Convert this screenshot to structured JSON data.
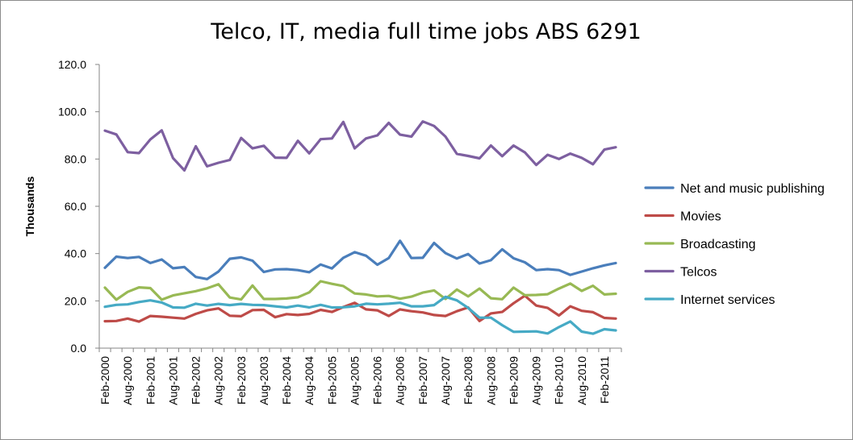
{
  "chart_data": {
    "type": "line",
    "title": "Telco, IT, media full time jobs ABS 6291",
    "ylabel": "Thousands",
    "xlabel": "",
    "ylim": [
      0,
      120
    ],
    "yticks": [
      "0.0",
      "20.0",
      "40.0",
      "60.0",
      "80.0",
      "100.0",
      "120.0"
    ],
    "grid": false,
    "legend_position": "right",
    "x_tick_labels": [
      "Feb-2000",
      "Aug-2000",
      "Feb-2001",
      "Aug-2001",
      "Feb-2002",
      "Aug-2002",
      "Feb-2003",
      "Aug-2003",
      "Feb-2004",
      "Aug-2004",
      "Feb-2005",
      "Aug-2005",
      "Feb-2006",
      "Aug-2006",
      "Feb-2007",
      "Aug-2007",
      "Feb-2008",
      "Aug-2008",
      "Feb-2009",
      "Aug-2009",
      "Feb-2010",
      "Aug-2010",
      "Feb-2011"
    ],
    "series": [
      {
        "name": "Net and music publishing",
        "color": "#4a7ebb",
        "values": [
          34,
          38.7,
          38.1,
          38.6,
          36,
          37.5,
          33.8,
          34.3,
          30.1,
          29.2,
          32.4,
          37.8,
          38.4,
          37,
          32.2,
          33.3,
          33.4,
          33,
          32.1,
          35.4,
          33.7,
          38.2,
          40.6,
          39.1,
          35.3,
          38.1,
          45.4,
          38.1,
          38.2,
          44.5,
          40.2,
          37.9,
          39.8,
          35.8,
          37.2,
          41.8,
          38,
          36.3,
          33,
          33.4,
          33,
          31,
          32.4,
          33.8,
          35,
          36
        ]
      },
      {
        "name": "Movies",
        "color": "#be4b48",
        "values": [
          11.4,
          11.5,
          12.5,
          11.2,
          13.6,
          13.3,
          12.9,
          12.5,
          14.5,
          16,
          16.8,
          13.7,
          13.5,
          16.1,
          16.2,
          13.1,
          14.4,
          14,
          14.5,
          16.2,
          15.3,
          17.4,
          19.2,
          16.4,
          16,
          13.6,
          16.4,
          15.6,
          15.1,
          14,
          13.6,
          15.6,
          17.2,
          11.5,
          14.7,
          15.3,
          19,
          22.2,
          18,
          17,
          13.8,
          17.7,
          15.8,
          15.2,
          12.8,
          12.5
        ]
      },
      {
        "name": "Broadcasting",
        "color": "#98b954",
        "values": [
          25.6,
          20.5,
          23.8,
          25.7,
          25.4,
          20.5,
          22.3,
          23.2,
          24.1,
          25.3,
          27,
          21.4,
          20.6,
          26.5,
          20.8,
          20.8,
          21,
          21.5,
          23.6,
          28.3,
          27.2,
          26.3,
          23.1,
          22.7,
          21.9,
          22.1,
          20.9,
          21.8,
          23.5,
          24.4,
          20.8,
          24.8,
          21.9,
          25.2,
          21.1,
          20.7,
          25.6,
          22.4,
          22.5,
          22.8,
          25.2,
          27.3,
          24.2,
          26.4,
          22.7,
          23
        ]
      },
      {
        "name": "Telcos",
        "color": "#7d5fa0",
        "values": [
          92,
          90.4,
          82.9,
          82.5,
          88.3,
          92.1,
          80.4,
          75.2,
          85.4,
          76.9,
          78.4,
          79.6,
          88.9,
          84.5,
          85.6,
          80.6,
          80.5,
          87.7,
          82.4,
          88.4,
          88.7,
          95.7,
          84.5,
          88.7,
          90,
          95.3,
          90.3,
          89.5,
          95.9,
          94,
          89.5,
          82.2,
          81.3,
          80.3,
          85.7,
          81.2,
          85.7,
          82.8,
          77.5,
          81.8,
          80,
          82.3,
          80.5,
          77.8,
          84,
          85
        ]
      },
      {
        "name": "Internet services",
        "color": "#46aac5",
        "values": [
          17.5,
          18.3,
          18.5,
          19.5,
          20.2,
          19.3,
          17.2,
          17.1,
          18.8,
          18,
          18.7,
          18.2,
          18.7,
          18.3,
          18.2,
          17.7,
          17.2,
          18,
          17.2,
          18.3,
          17.2,
          17.3,
          17.7,
          18.8,
          18.5,
          18.8,
          19.2,
          17.7,
          17.7,
          18.2,
          21.7,
          20.2,
          17,
          12.9,
          12.9,
          9.7,
          6.9,
          7,
          7.1,
          6.2,
          8.9,
          11.3,
          7,
          6.1,
          8,
          7.5
        ]
      }
    ]
  }
}
